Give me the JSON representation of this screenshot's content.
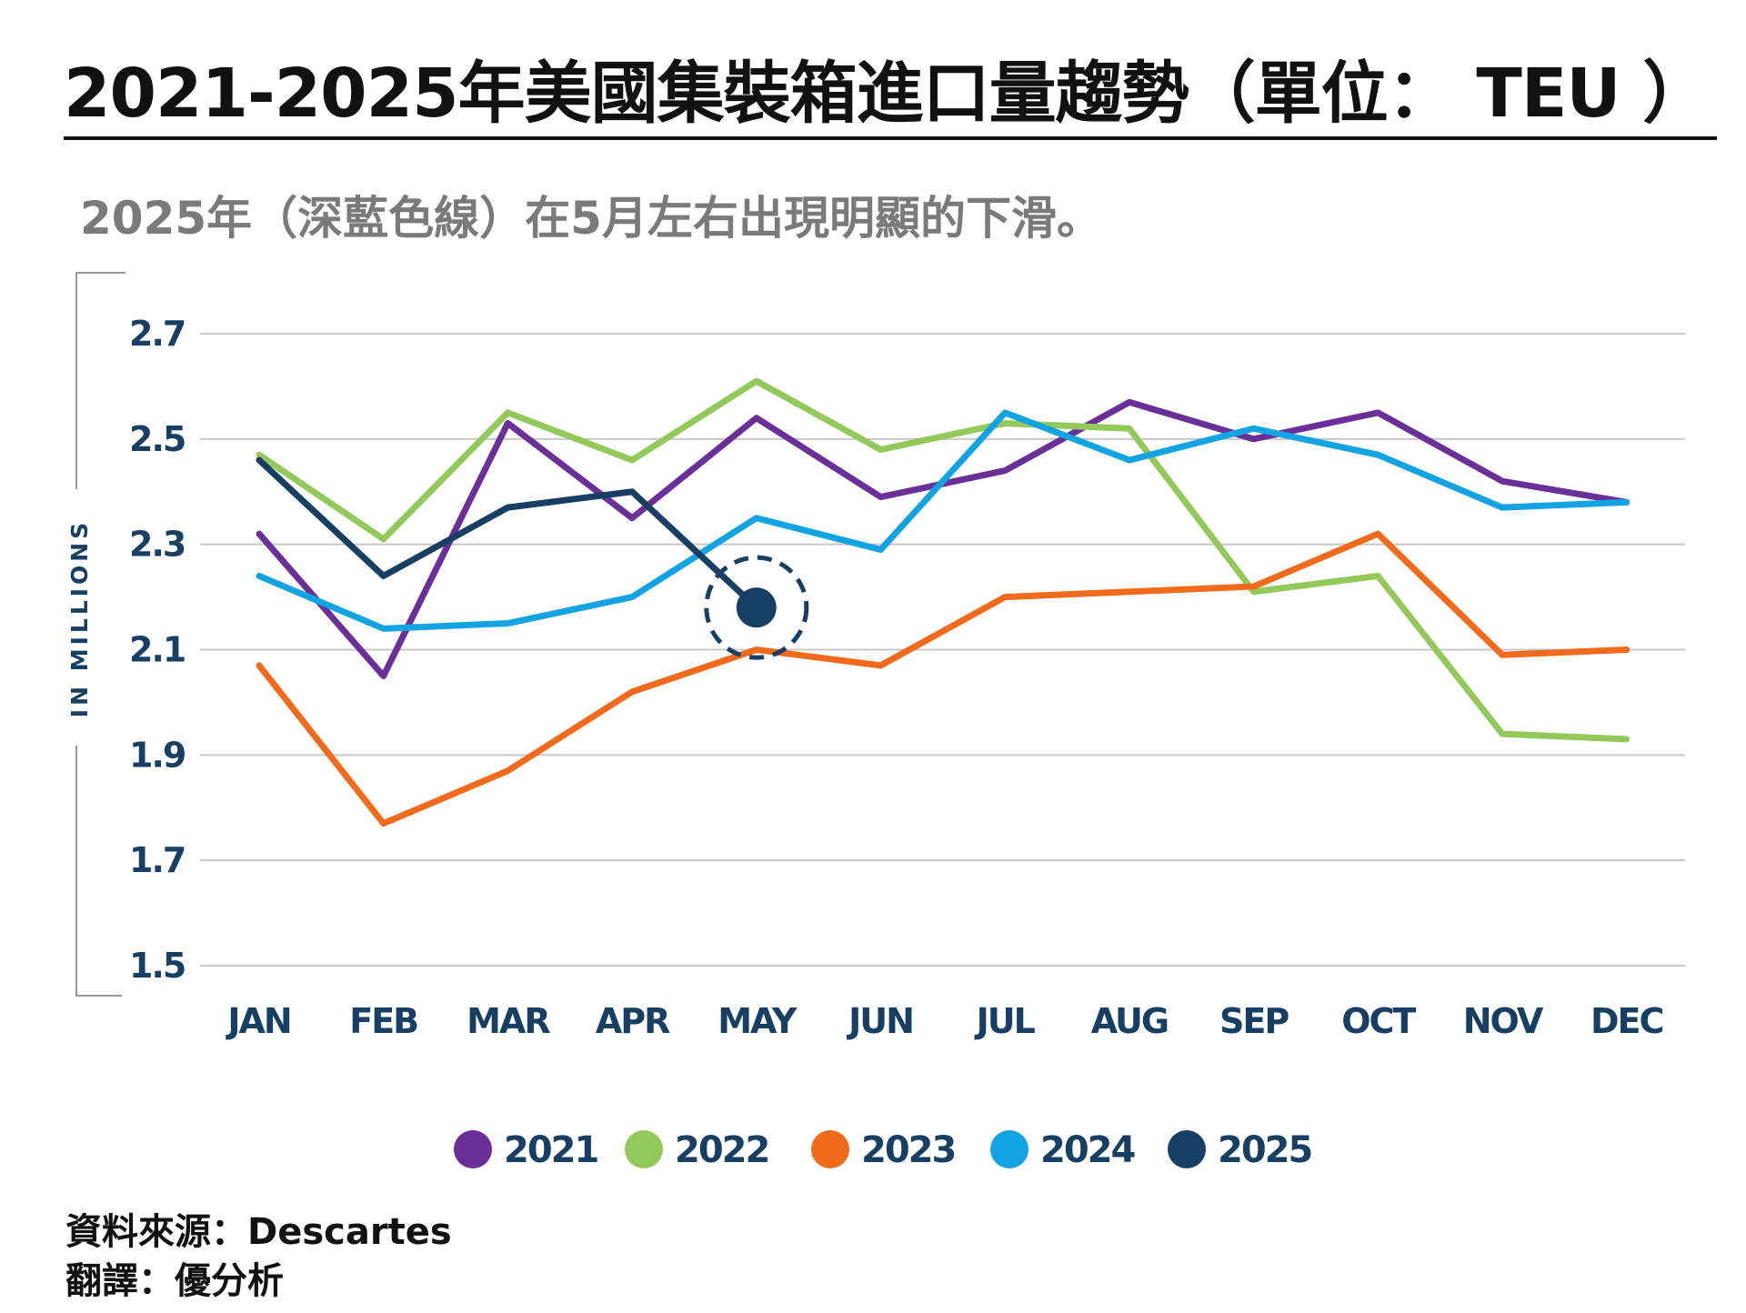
{
  "title": "2021-2025年美國集裝箱進口量趨勢（單位： TEU ）",
  "subtitle": "2025年（深藍色線）在5月左右出現明顯的下滑。",
  "footer": {
    "source": "資料來源：Descartes",
    "translation": "翻譯：優分析"
  },
  "chart_data": {
    "type": "line",
    "ylabel": "IN MILLIONS",
    "ylim": [
      1.5,
      2.7
    ],
    "yticks": [
      "2.7",
      "2.5",
      "2.3",
      "2.1",
      "1.9",
      "1.7",
      "1.5"
    ],
    "categories": [
      "JAN",
      "FEB",
      "MAR",
      "APR",
      "MAY",
      "JUN",
      "JUL",
      "AUG",
      "SEP",
      "OCT",
      "NOV",
      "DEC"
    ],
    "grid": true,
    "legend_position": "bottom",
    "series": [
      {
        "name": "2021",
        "color": "#6a2f99",
        "values": [
          2.32,
          2.05,
          2.53,
          2.35,
          2.54,
          2.39,
          2.44,
          2.57,
          2.5,
          2.55,
          2.42,
          2.38
        ]
      },
      {
        "name": "2022",
        "color": "#92c95a",
        "values": [
          2.47,
          2.31,
          2.55,
          2.46,
          2.61,
          2.48,
          2.53,
          2.52,
          2.21,
          2.24,
          1.94,
          1.93
        ]
      },
      {
        "name": "2023",
        "color": "#f26b1d",
        "values": [
          2.07,
          1.77,
          1.87,
          2.02,
          2.1,
          2.07,
          2.2,
          2.21,
          2.22,
          2.32,
          2.09,
          2.1
        ]
      },
      {
        "name": "2024",
        "color": "#12a3e3",
        "values": [
          2.24,
          2.14,
          2.15,
          2.2,
          2.35,
          2.29,
          2.55,
          2.46,
          2.52,
          2.47,
          2.37,
          2.38
        ]
      },
      {
        "name": "2025",
        "color": "#173f63",
        "values": [
          2.46,
          2.24,
          2.37,
          2.4,
          2.18,
          null,
          null,
          null,
          null,
          null,
          null,
          null
        ]
      }
    ],
    "highlight": {
      "series": "2025",
      "category": "MAY"
    }
  }
}
